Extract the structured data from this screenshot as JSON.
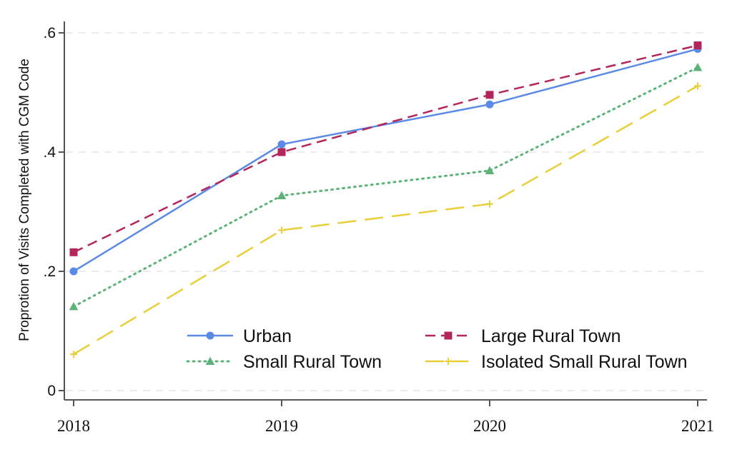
{
  "chart_data": {
    "type": "line",
    "title": "",
    "xlabel": "",
    "ylabel": "Proprotion of Visits Completed with CGM Code",
    "x": [
      "2018",
      "2019",
      "2020",
      "2021"
    ],
    "ylim": [
      0,
      0.6
    ],
    "yticks": [
      0,
      0.2,
      0.4,
      0.6
    ],
    "ytick_labels": [
      "0",
      ".2",
      ".4",
      ".6"
    ],
    "grid": true,
    "legend_position": "bottom-right inside, 2 columns",
    "series": [
      {
        "name": "Urban",
        "color": "#5b8ae6",
        "marker": "circle",
        "linestyle": "solid",
        "values": [
          0.2,
          0.413,
          0.48,
          0.573
        ]
      },
      {
        "name": "Large Rural Town",
        "color": "#b3265c",
        "marker": "square",
        "linestyle": "dashed",
        "values": [
          0.232,
          0.4,
          0.496,
          0.579
        ]
      },
      {
        "name": "Small Rural Town",
        "color": "#5cb37a",
        "marker": "triangle",
        "linestyle": "dotted",
        "values": [
          0.141,
          0.327,
          0.369,
          0.542
        ]
      },
      {
        "name": "Isolated Small Rural Town",
        "color": "#e8cf3a",
        "marker": "plus",
        "linestyle": "longdash",
        "values": [
          0.061,
          0.269,
          0.313,
          0.511
        ]
      }
    ]
  }
}
